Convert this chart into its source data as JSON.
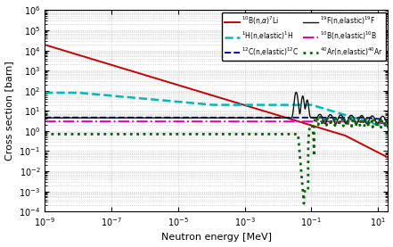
{
  "xlabel": "Neutron energy [MeV]",
  "ylabel": "Cross section [barn]",
  "xlim_low": 1e-09,
  "xlim_high": 20,
  "ylim_low": 0.0001,
  "ylim_high": 1000000.0,
  "series": [
    {
      "label": "$^{10}$B(n,$\\alpha$)$^{7}$Li",
      "color": "#cc0000",
      "ls": "-",
      "lw": 1.4,
      "legend_col": 0
    },
    {
      "label": "$^{12}$C(n,elastic)$^{12}$C",
      "color": "#0000bb",
      "ls": "--",
      "lw": 1.4,
      "legend_col": 0
    },
    {
      "label": "$^{10}$B(n,elastic)$^{10}$B",
      "color": "#dd00aa",
      "ls": "-.",
      "lw": 1.4,
      "legend_col": 0
    },
    {
      "label": "$^{1}$H(n,elastic)$^{1}$H",
      "color": "#00bbbb",
      "ls": "--",
      "lw": 1.8,
      "legend_col": 1
    },
    {
      "label": "$^{19}$F(n,elastic)$^{19}$F",
      "color": "#111111",
      "ls": "-",
      "lw": 1.0,
      "legend_col": 1
    },
    {
      "label": "$^{40}$Ar(n,elastic)$^{40}$Ar",
      "color": "#006600",
      "ls": ":",
      "lw": 2.0,
      "legend_col": 1
    }
  ],
  "grid_color": "#aaaaaa",
  "grid_ls": ":",
  "grid_lw": 0.5,
  "legend_fontsize": 5.5,
  "axis_fontsize": 8,
  "tick_fontsize": 7
}
